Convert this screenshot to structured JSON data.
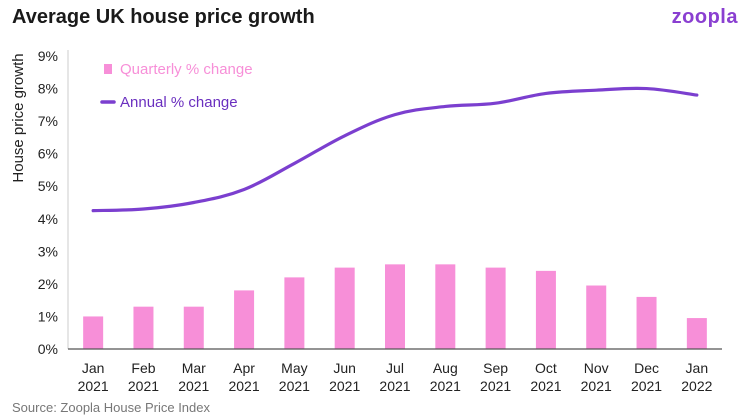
{
  "header": {
    "title": "Average UK house price growth",
    "logo": "zoopla"
  },
  "footer": {
    "source": "Source: Zoopla House Price Index"
  },
  "colors": {
    "bar": "#f78fd8",
    "line": "#7b3fcf",
    "legend_bar_text": "#f78fd8",
    "legend_line_text": "#6a2fbf",
    "axis": "#555555"
  },
  "chart_data": {
    "type": "bar",
    "title": "Average UK house price growth",
    "xlabel": "",
    "ylabel": "House price growth",
    "ylim": [
      0,
      9
    ],
    "yticks": [
      "0%",
      "1%",
      "2%",
      "3%",
      "4%",
      "5%",
      "6%",
      "7%",
      "8%",
      "9%"
    ],
    "categories": [
      "Jan",
      "Feb",
      "Mar",
      "Apr",
      "May",
      "Jun",
      "Jul",
      "Aug",
      "Sep",
      "Oct",
      "Nov",
      "Dec",
      "Jan"
    ],
    "category_years": [
      "2021",
      "2021",
      "2021",
      "2021",
      "2021",
      "2021",
      "2021",
      "2021",
      "2021",
      "2021",
      "2021",
      "2021",
      "2022"
    ],
    "legend_position": "top-left",
    "series": [
      {
        "name": "Quarterly % change",
        "type": "bar",
        "values": [
          1.0,
          1.3,
          1.3,
          1.8,
          2.2,
          2.5,
          2.6,
          2.6,
          2.5,
          2.4,
          1.95,
          1.6,
          0.95
        ]
      },
      {
        "name": "Annual % change",
        "type": "line",
        "values": [
          4.25,
          4.3,
          4.5,
          4.9,
          5.7,
          6.55,
          7.2,
          7.45,
          7.55,
          7.85,
          7.95,
          8.0,
          7.8
        ]
      }
    ]
  }
}
